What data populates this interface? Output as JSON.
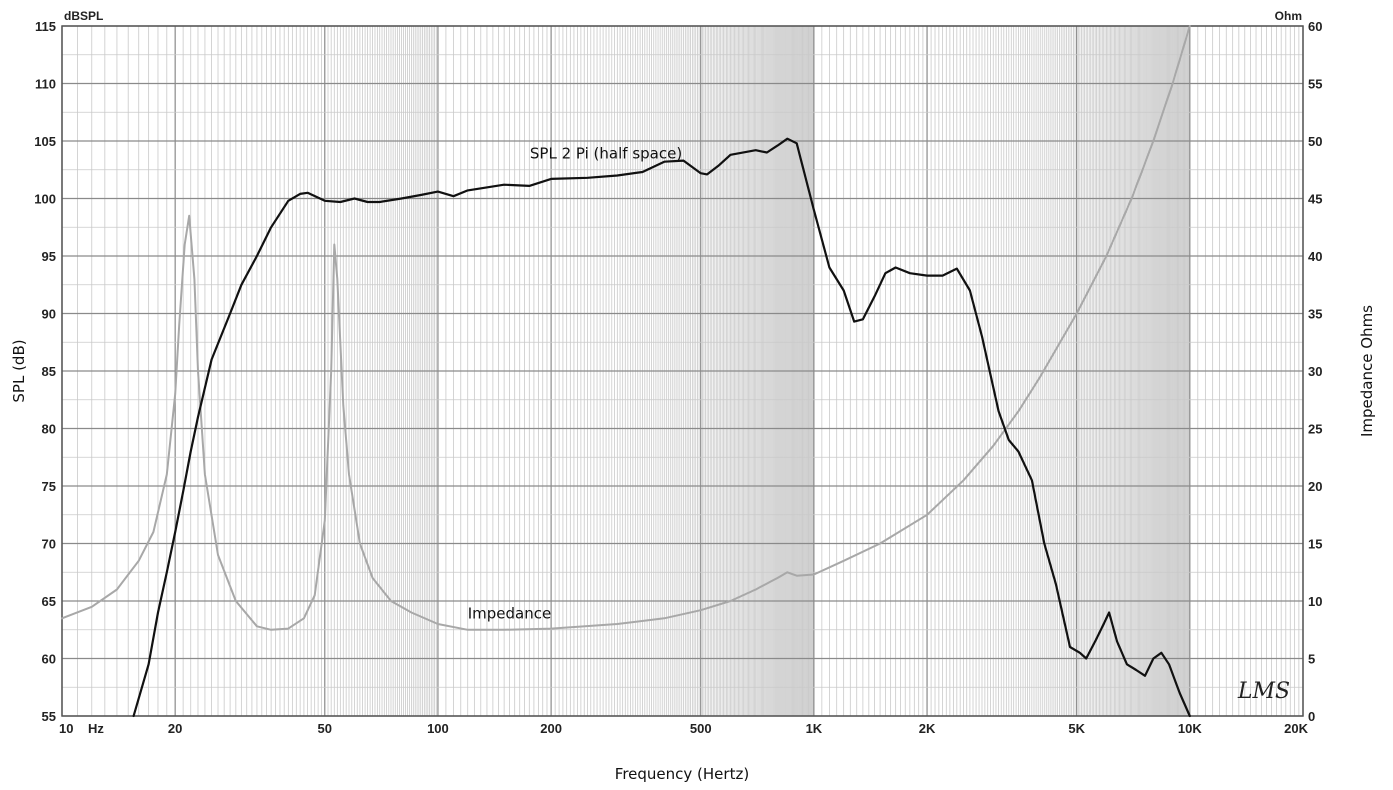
{
  "chart_data": {
    "type": "line",
    "x_scale": "log",
    "xlim": [
      10,
      20000
    ],
    "ylim_left": [
      55,
      115
    ],
    "ylim_right": [
      0,
      60
    ],
    "grid": true,
    "left_unit": "dBSPL",
    "right_unit": "Ohm",
    "ylabel_left": "SPL (dB)",
    "ylabel_right": "Impedance Ohms",
    "xlabel": "Frequency (Hertz)",
    "x_ticks": [
      {
        "value": 10,
        "label": "10"
      },
      {
        "value": 20,
        "label": "20"
      },
      {
        "value": 50,
        "label": "50"
      },
      {
        "value": 100,
        "label": "100"
      },
      {
        "value": 200,
        "label": "200"
      },
      {
        "value": 500,
        "label": "500"
      },
      {
        "value": 1000,
        "label": "1K"
      },
      {
        "value": 2000,
        "label": "2K"
      },
      {
        "value": 5000,
        "label": "5K"
      },
      {
        "value": 10000,
        "label": "10K"
      },
      {
        "value": 20000,
        "label": "20K"
      }
    ],
    "x_unit_label": "Hz",
    "left_ticks": [
      "55",
      "60",
      "65",
      "70",
      "75",
      "80",
      "85",
      "90",
      "95",
      "100",
      "105",
      "110",
      "115"
    ],
    "right_ticks": [
      "0",
      "5",
      "10",
      "15",
      "20",
      "25",
      "30",
      "35",
      "40",
      "45",
      "50",
      "55",
      "60"
    ],
    "annotations": [
      {
        "text": "SPL 2 Pi (half space)",
        "x": 280,
        "y": 103.5
      },
      {
        "text": "Impedance",
        "x": 155,
        "y": 63.5
      }
    ],
    "watermark": "LMS",
    "series": [
      {
        "name": "SPL 2 Pi (half space)",
        "axis": "left",
        "color": "#111111",
        "points": [
          [
            15.5,
            55
          ],
          [
            17,
            59.5
          ],
          [
            18,
            64
          ],
          [
            19,
            67.5
          ],
          [
            20,
            71
          ],
          [
            21,
            74.5
          ],
          [
            22,
            78
          ],
          [
            23,
            81
          ],
          [
            25,
            86
          ],
          [
            28,
            90
          ],
          [
            30,
            92.5
          ],
          [
            33,
            95
          ],
          [
            36,
            97.5
          ],
          [
            40,
            99.8
          ],
          [
            43,
            100.4
          ],
          [
            45,
            100.5
          ],
          [
            50,
            99.8
          ],
          [
            55,
            99.7
          ],
          [
            60,
            100
          ],
          [
            65,
            99.7
          ],
          [
            70,
            99.7
          ],
          [
            80,
            100
          ],
          [
            90,
            100.3
          ],
          [
            100,
            100.6
          ],
          [
            110,
            100.2
          ],
          [
            120,
            100.7
          ],
          [
            150,
            101.2
          ],
          [
            175,
            101.1
          ],
          [
            200,
            101.7
          ],
          [
            250,
            101.8
          ],
          [
            300,
            102
          ],
          [
            350,
            102.3
          ],
          [
            400,
            103.2
          ],
          [
            450,
            103.3
          ],
          [
            500,
            102.2
          ],
          [
            520,
            102.1
          ],
          [
            560,
            102.9
          ],
          [
            600,
            103.8
          ],
          [
            700,
            104.2
          ],
          [
            750,
            104
          ],
          [
            800,
            104.6
          ],
          [
            850,
            105.2
          ],
          [
            900,
            104.8
          ],
          [
            1000,
            99
          ],
          [
            1100,
            94
          ],
          [
            1200,
            92
          ],
          [
            1280,
            89.3
          ],
          [
            1350,
            89.5
          ],
          [
            1450,
            91.5
          ],
          [
            1550,
            93.5
          ],
          [
            1650,
            94
          ],
          [
            1800,
            93.5
          ],
          [
            2000,
            93.3
          ],
          [
            2200,
            93.3
          ],
          [
            2400,
            93.9
          ],
          [
            2600,
            92
          ],
          [
            2800,
            88
          ],
          [
            3100,
            81.5
          ],
          [
            3300,
            79
          ],
          [
            3500,
            78
          ],
          [
            3800,
            75.5
          ],
          [
            4100,
            70
          ],
          [
            4400,
            66.5
          ],
          [
            4800,
            61
          ],
          [
            5100,
            60.5
          ],
          [
            5300,
            60
          ],
          [
            5600,
            61.5
          ],
          [
            5900,
            63
          ],
          [
            6100,
            64
          ],
          [
            6400,
            61.5
          ],
          [
            6800,
            59.5
          ],
          [
            7200,
            59
          ],
          [
            7600,
            58.5
          ],
          [
            8000,
            60
          ],
          [
            8400,
            60.5
          ],
          [
            8800,
            59.5
          ],
          [
            9400,
            57
          ],
          [
            10000,
            55
          ]
        ]
      },
      {
        "name": "Impedance",
        "axis": "right",
        "color": "#a8a8a8",
        "points": [
          [
            10,
            8.5
          ],
          [
            12,
            9.5
          ],
          [
            14,
            11
          ],
          [
            16,
            13.5
          ],
          [
            17.5,
            16
          ],
          [
            19,
            21
          ],
          [
            20,
            28
          ],
          [
            20.5,
            34
          ],
          [
            21.2,
            41
          ],
          [
            21.8,
            43.5
          ],
          [
            22.5,
            38
          ],
          [
            23,
            30
          ],
          [
            24,
            21
          ],
          [
            26,
            14
          ],
          [
            29,
            10
          ],
          [
            33,
            7.8
          ],
          [
            36,
            7.5
          ],
          [
            40,
            7.6
          ],
          [
            44,
            8.5
          ],
          [
            47,
            10.5
          ],
          [
            50,
            17
          ],
          [
            52,
            30
          ],
          [
            53,
            41
          ],
          [
            54,
            38
          ],
          [
            56,
            27
          ],
          [
            58,
            21
          ],
          [
            62,
            15
          ],
          [
            67,
            12
          ],
          [
            75,
            10
          ],
          [
            85,
            9
          ],
          [
            100,
            8
          ],
          [
            120,
            7.5
          ],
          [
            150,
            7.5
          ],
          [
            200,
            7.6
          ],
          [
            300,
            8
          ],
          [
            400,
            8.5
          ],
          [
            500,
            9.2
          ],
          [
            600,
            10
          ],
          [
            700,
            11
          ],
          [
            800,
            12
          ],
          [
            850,
            12.5
          ],
          [
            900,
            12.2
          ],
          [
            1000,
            12.3
          ],
          [
            1200,
            13.5
          ],
          [
            1500,
            15
          ],
          [
            2000,
            17.5
          ],
          [
            2500,
            20.5
          ],
          [
            3000,
            23.5
          ],
          [
            3500,
            26.5
          ],
          [
            4000,
            29.5
          ],
          [
            5000,
            35
          ],
          [
            6000,
            40
          ],
          [
            7000,
            45
          ],
          [
            8000,
            50
          ],
          [
            9000,
            55
          ],
          [
            10000,
            60
          ]
        ]
      }
    ]
  }
}
